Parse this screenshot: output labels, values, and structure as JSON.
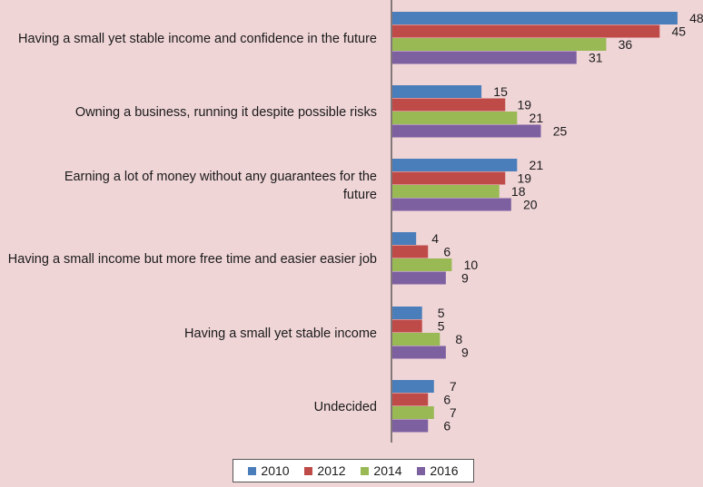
{
  "chart_data": {
    "type": "bar",
    "orientation": "horizontal",
    "categories": [
      [
        "Having a small yet stable income and confidence in the future"
      ],
      [
        "Owning a business, running it despite possible risks"
      ],
      [
        "Earning a lot of money without any guarantees for the",
        "future"
      ],
      [
        "Having a small income but more free time and easier easier job"
      ],
      [
        "Having a small yet stable income"
      ],
      [
        "Undecided"
      ]
    ],
    "series": [
      {
        "name": "2010",
        "color": "#4a7ebb",
        "values": [
          48,
          15,
          21,
          4,
          5,
          7
        ]
      },
      {
        "name": "2012",
        "color": "#be4b48",
        "values": [
          45,
          19,
          19,
          6,
          5,
          6
        ]
      },
      {
        "name": "2014",
        "color": "#98b954",
        "values": [
          36,
          21,
          18,
          10,
          8,
          7
        ]
      },
      {
        "name": "2016",
        "color": "#7d60a0",
        "values": [
          31,
          25,
          20,
          9,
          9,
          6
        ]
      }
    ],
    "xlim": [
      0,
      50
    ],
    "grid": false,
    "legend_position": "bottom"
  }
}
